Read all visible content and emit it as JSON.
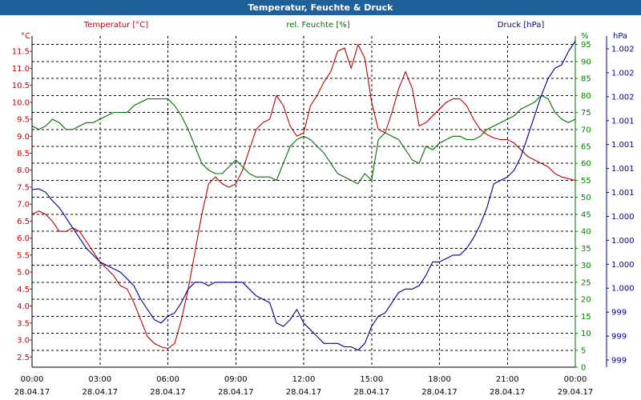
{
  "window": {
    "title": "Temperatur, Feuchte & Druck"
  },
  "chart_data": {
    "type": "line",
    "title": "Temperatur, Feuchte & Druck",
    "xlim_hours": [
      0,
      24
    ],
    "x_ticks": [
      {
        "time": "00:00",
        "date": "28.04.17"
      },
      {
        "time": "03:00",
        "date": "28.04.17"
      },
      {
        "time": "06:00",
        "date": "28.04.17"
      },
      {
        "time": "09:00",
        "date": "28.04.17"
      },
      {
        "time": "12:00",
        "date": "28.04.17"
      },
      {
        "time": "15:00",
        "date": "28.04.17"
      },
      {
        "time": "18:00",
        "date": "28.04.17"
      },
      {
        "time": "21:00",
        "date": "28.04.17"
      },
      {
        "time": "00:00",
        "date": "29.04.17"
      }
    ],
    "grid": true,
    "axes": {
      "left": {
        "unit": "°C",
        "min": 2.2,
        "max": 11.95,
        "color": "#c00000",
        "ticks": [
          "2.5",
          "3.0",
          "3.5",
          "4.0",
          "4.5",
          "5.0",
          "5.5",
          "6.0",
          "6.5",
          "7.0",
          "7.5",
          "8.0",
          "8.5",
          "9.0",
          "9.5",
          "10.0",
          "10.5",
          "11.0",
          "11.5"
        ]
      },
      "right1": {
        "unit": "%",
        "min": 0,
        "max": 97.5,
        "color": "#008000",
        "ticks": [
          "0",
          "5",
          "10",
          "15",
          "20",
          "25",
          "30",
          "35",
          "40",
          "45",
          "50",
          "55",
          "60",
          "65",
          "70",
          "75",
          "80",
          "85",
          "90",
          "95"
        ]
      },
      "right2": {
        "unit": "hPa",
        "color": "#00008b",
        "ticks": [
          "999",
          "999",
          "999",
          "1.000",
          "1.000",
          "1.000",
          "1.000",
          "1.001",
          "1.001",
          "1.001",
          "1.001",
          "1.002",
          "1.002",
          "1.002"
        ]
      }
    },
    "series": [
      {
        "name": "Temperatur [°C]",
        "axis": "left",
        "color": "#c00000",
        "x": [
          0,
          0.3,
          0.6,
          0.9,
          1.2,
          1.5,
          1.8,
          2.1,
          2.4,
          2.7,
          3.0,
          3.3,
          3.6,
          3.9,
          4.2,
          4.5,
          4.8,
          5.1,
          5.4,
          5.7,
          6.0,
          6.3,
          6.6,
          6.9,
          7.2,
          7.5,
          7.8,
          8.1,
          8.4,
          8.7,
          9.0,
          9.3,
          9.6,
          9.9,
          10.2,
          10.5,
          10.8,
          11.1,
          11.4,
          11.7,
          12.0,
          12.3,
          12.6,
          12.9,
          13.2,
          13.5,
          13.8,
          14.1,
          14.4,
          14.7,
          15.0,
          15.3,
          15.6,
          15.9,
          16.2,
          16.5,
          16.8,
          17.1,
          17.4,
          17.7,
          18.0,
          18.3,
          18.6,
          18.9,
          19.2,
          19.5,
          19.8,
          20.1,
          20.4,
          20.7,
          21.0,
          21.3,
          21.6,
          21.9,
          22.2,
          22.5,
          22.8,
          23.1,
          23.4,
          23.7,
          24.0
        ],
        "values": [
          6.7,
          6.8,
          6.7,
          6.5,
          6.2,
          6.2,
          6.3,
          6.2,
          5.9,
          5.6,
          5.3,
          5.1,
          4.9,
          4.6,
          4.5,
          4.1,
          3.6,
          3.1,
          2.9,
          2.8,
          2.75,
          2.9,
          3.6,
          4.5,
          5.6,
          6.7,
          7.6,
          7.8,
          7.6,
          7.5,
          7.6,
          8.0,
          8.6,
          9.2,
          9.4,
          9.5,
          10.2,
          9.9,
          9.3,
          9.0,
          9.1,
          9.9,
          10.2,
          10.6,
          10.9,
          11.5,
          11.6,
          11.0,
          11.7,
          11.3,
          10.0,
          9.2,
          9.1,
          9.7,
          10.4,
          10.9,
          10.4,
          9.3,
          9.4,
          9.6,
          9.8,
          10.0,
          10.1,
          10.1,
          9.9,
          9.5,
          9.2,
          9.05,
          8.95,
          8.9,
          8.9,
          8.8,
          8.6,
          8.4,
          8.3,
          8.2,
          8.1,
          7.9,
          7.8,
          7.75,
          7.7
        ]
      },
      {
        "name": "rel. Feuchte [%]",
        "axis": "right1",
        "color": "#007000",
        "x": [
          0,
          0.3,
          0.6,
          0.9,
          1.2,
          1.5,
          1.8,
          2.1,
          2.4,
          2.7,
          3.0,
          3.3,
          3.6,
          3.9,
          4.2,
          4.5,
          4.8,
          5.1,
          5.4,
          5.7,
          6.0,
          6.3,
          6.6,
          6.9,
          7.2,
          7.5,
          7.8,
          8.1,
          8.4,
          8.7,
          9.0,
          9.3,
          9.6,
          9.9,
          10.2,
          10.5,
          10.8,
          11.1,
          11.4,
          11.7,
          12.0,
          12.3,
          12.6,
          12.9,
          13.2,
          13.5,
          13.8,
          14.1,
          14.4,
          14.7,
          15.0,
          15.3,
          15.6,
          15.9,
          16.2,
          16.5,
          16.8,
          17.1,
          17.4,
          17.7,
          18.0,
          18.3,
          18.6,
          18.9,
          19.2,
          19.5,
          19.8,
          20.1,
          20.4,
          20.7,
          21.0,
          21.3,
          21.6,
          21.9,
          22.2,
          22.5,
          22.8,
          23.1,
          23.4,
          23.7,
          24.0
        ],
        "values": [
          71,
          70,
          71,
          73,
          72,
          70,
          70,
          71,
          72,
          72,
          73,
          74,
          75,
          75,
          75,
          77,
          78,
          79,
          79,
          79,
          79,
          77,
          74,
          70,
          65,
          60,
          58,
          57,
          57,
          59,
          61,
          59,
          57,
          56,
          56,
          56,
          55,
          60,
          65,
          67,
          68,
          67,
          65,
          63,
          60,
          57,
          56,
          55,
          54,
          57,
          55,
          67,
          69,
          68,
          67,
          64,
          61,
          60,
          65,
          64,
          66,
          67,
          68,
          68,
          67,
          67,
          68,
          70,
          71,
          72,
          73,
          74,
          76,
          77,
          78,
          80,
          79,
          75,
          73,
          72,
          73
        ]
      },
      {
        "name": "Druck [hPa]",
        "axis": "right2",
        "color": "#00008b",
        "x": [
          0,
          0.3,
          0.6,
          0.9,
          1.2,
          1.5,
          1.8,
          2.1,
          2.4,
          2.7,
          3.0,
          3.3,
          3.6,
          3.9,
          4.2,
          4.5,
          4.8,
          5.1,
          5.4,
          5.7,
          6.0,
          6.3,
          6.6,
          6.9,
          7.2,
          7.5,
          7.8,
          8.1,
          8.4,
          8.7,
          9.0,
          9.3,
          9.6,
          9.9,
          10.2,
          10.5,
          10.8,
          11.1,
          11.4,
          11.7,
          12.0,
          12.3,
          12.6,
          12.9,
          13.2,
          13.5,
          13.8,
          14.1,
          14.4,
          14.7,
          15.0,
          15.3,
          15.6,
          15.9,
          16.2,
          16.5,
          16.8,
          17.1,
          17.4,
          17.7,
          18.0,
          18.3,
          18.6,
          18.9,
          19.2,
          19.5,
          19.8,
          20.1,
          20.4,
          20.7,
          21.0,
          21.3,
          21.6,
          21.9,
          22.2,
          22.5,
          22.8,
          23.1,
          23.4,
          23.7,
          24.0
        ],
        "values": [
          52.3,
          52.5,
          51.5,
          49,
          47,
          44,
          41,
          38,
          35,
          33,
          31,
          30,
          29,
          28,
          26,
          24,
          20,
          17,
          14,
          13,
          15,
          16,
          19,
          23,
          25,
          25,
          24,
          25,
          25,
          25,
          25,
          25,
          23,
          21,
          20,
          19,
          13,
          12,
          14,
          17,
          13,
          11,
          9,
          7,
          7,
          7,
          6,
          6,
          5,
          7,
          12,
          15,
          16,
          19,
          22,
          23,
          23,
          24,
          27,
          31,
          31,
          32,
          33,
          33,
          35,
          38,
          42,
          47,
          54,
          55,
          56,
          58,
          62,
          68,
          74,
          80,
          85,
          88,
          89,
          93,
          96
        ]
      }
    ],
    "legend": {
      "position": "top",
      "entries": [
        "Temperatur [°C]",
        "rel. Feuchte [%]",
        "Druck [hPa]"
      ]
    }
  }
}
